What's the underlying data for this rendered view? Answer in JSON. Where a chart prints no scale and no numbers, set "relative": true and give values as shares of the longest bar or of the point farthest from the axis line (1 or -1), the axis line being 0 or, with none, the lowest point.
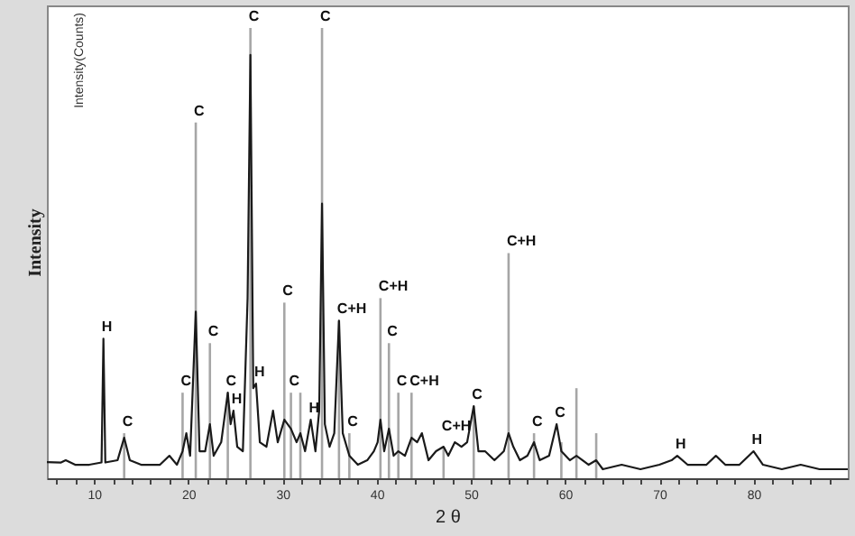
{
  "chart_data": {
    "type": "line",
    "relative": true,
    "xlabel": "2 θ",
    "ylabel": "Intensity",
    "xlim": [
      5,
      90
    ],
    "xticks": [
      {
        "value": 6,
        "label": null
      },
      {
        "value": 8,
        "label": null
      },
      10,
      {
        "value": 12,
        "label": null
      },
      {
        "value": 14,
        "label": null
      },
      {
        "value": 16,
        "label": null
      },
      {
        "value": 18,
        "label": null
      },
      20,
      {
        "value": 22,
        "label": null
      },
      {
        "value": 24,
        "label": null
      },
      {
        "value": 26,
        "label": null
      },
      {
        "value": 28,
        "label": null
      },
      30,
      {
        "value": 32,
        "label": null
      },
      {
        "value": 34,
        "label": null
      },
      {
        "value": 36,
        "label": null
      },
      {
        "value": 38,
        "label": null
      },
      40,
      {
        "value": 42,
        "label": null
      },
      {
        "value": 44,
        "label": null
      },
      {
        "value": 46,
        "label": null
      },
      {
        "value": 48,
        "label": null
      },
      50,
      {
        "value": 52,
        "label": null
      },
      {
        "value": 54,
        "label": null
      },
      {
        "value": 56,
        "label": null
      },
      {
        "value": 58,
        "label": null
      },
      60,
      {
        "value": 62,
        "label": null
      },
      {
        "value": 64,
        "label": null
      },
      {
        "value": 66,
        "label": null
      },
      {
        "value": 68,
        "label": null
      },
      70,
      {
        "value": 72,
        "label": null
      },
      {
        "value": 74,
        "label": null
      },
      {
        "value": 76,
        "label": null
      },
      {
        "value": 78,
        "label": null
      },
      80,
      {
        "value": 82,
        "label": null
      },
      {
        "value": 84,
        "label": null
      },
      {
        "value": 86,
        "label": null
      },
      {
        "value": 88,
        "label": null
      }
    ],
    "grid": false,
    "series": [
      {
        "type": "bar",
        "color": "#a6a6a6",
        "x": [
          13.2,
          19.4,
          20.8,
          22.3,
          24.2,
          26.6,
          30.2,
          30.9,
          31.9,
          34.2,
          36.0,
          37.1,
          40.4,
          41.3,
          42.3,
          43.7,
          47.1,
          50.3,
          54.0,
          56.7,
          59.6,
          61.2,
          63.3
        ],
        "values": [
          0.1,
          0.19,
          0.79,
          0.3,
          0.19,
          1.0,
          0.39,
          0.19,
          0.19,
          1.0,
          0.35,
          0.1,
          0.4,
          0.3,
          0.19,
          0.19,
          0.07,
          0.16,
          0.5,
          0.1,
          0.08,
          0.2,
          0.1
        ]
      },
      {
        "type": "line",
        "color": "#1a1a1a",
        "x": [
          5.0,
          6.5,
          7.0,
          8.0,
          9.5,
          10.8,
          11.0,
          11.2,
          12.5,
          13.2,
          13.8,
          15.0,
          17.0,
          18.0,
          18.8,
          19.4,
          19.8,
          20.2,
          20.8,
          21.2,
          21.8,
          22.3,
          22.7,
          23.5,
          24.2,
          24.5,
          24.8,
          25.2,
          25.8,
          26.3,
          26.6,
          26.9,
          27.2,
          27.6,
          28.3,
          29.0,
          29.5,
          30.2,
          30.9,
          31.5,
          31.9,
          32.4,
          33.0,
          33.5,
          33.9,
          34.2,
          34.5,
          35.0,
          35.5,
          36.0,
          36.4,
          37.1,
          38.0,
          39.0,
          39.7,
          40.1,
          40.4,
          40.8,
          41.3,
          41.8,
          42.3,
          43.0,
          43.7,
          44.3,
          44.8,
          45.5,
          46.3,
          47.1,
          47.6,
          48.3,
          49.0,
          49.6,
          50.3,
          50.8,
          51.5,
          52.5,
          53.5,
          54.0,
          54.5,
          55.2,
          56.0,
          56.7,
          57.3,
          58.3,
          59.1,
          59.6,
          60.5,
          61.2,
          62.5,
          63.3,
          64.0,
          66.0,
          68.0,
          70.0,
          71.3,
          71.9,
          73.0,
          75.0,
          76.0,
          77.0,
          78.5,
          80.0,
          81.0,
          83.0,
          85.0,
          87.0,
          90.0
        ],
        "values": [
          0.036,
          0.035,
          0.04,
          0.03,
          0.03,
          0.035,
          0.31,
          0.035,
          0.04,
          0.09,
          0.04,
          0.03,
          0.03,
          0.05,
          0.03,
          0.06,
          0.1,
          0.05,
          0.37,
          0.06,
          0.06,
          0.12,
          0.05,
          0.08,
          0.19,
          0.12,
          0.15,
          0.07,
          0.06,
          0.4,
          0.94,
          0.2,
          0.21,
          0.08,
          0.07,
          0.15,
          0.08,
          0.13,
          0.11,
          0.08,
          0.1,
          0.06,
          0.13,
          0.06,
          0.15,
          0.61,
          0.12,
          0.07,
          0.1,
          0.35,
          0.1,
          0.05,
          0.03,
          0.04,
          0.06,
          0.08,
          0.13,
          0.06,
          0.11,
          0.05,
          0.06,
          0.05,
          0.09,
          0.08,
          0.1,
          0.04,
          0.06,
          0.07,
          0.05,
          0.08,
          0.07,
          0.08,
          0.16,
          0.06,
          0.06,
          0.04,
          0.06,
          0.1,
          0.07,
          0.04,
          0.05,
          0.08,
          0.04,
          0.05,
          0.12,
          0.06,
          0.04,
          0.05,
          0.03,
          0.04,
          0.02,
          0.03,
          0.02,
          0.03,
          0.04,
          0.05,
          0.03,
          0.03,
          0.05,
          0.03,
          0.03,
          0.06,
          0.03,
          0.02,
          0.03,
          0.02,
          0.02
        ]
      }
    ],
    "annotations": [
      "Intensity(Counts)",
      {
        "text": "H",
        "x": 11.0,
        "y": 0.31
      },
      {
        "text": "C",
        "x": 13.2,
        "y": 0.1
      },
      {
        "text": "C",
        "x": 19.4,
        "y": 0.19
      },
      {
        "text": "C",
        "x": 20.8,
        "y": 0.79
      },
      {
        "text": "C",
        "x": 22.3,
        "y": 0.3
      },
      {
        "text": "C",
        "x": 24.2,
        "y": 0.19
      },
      {
        "text": "H",
        "x": 24.8,
        "y": 0.15
      },
      {
        "text": "C",
        "x": 26.6,
        "y": 1.0
      },
      {
        "text": "H",
        "x": 27.2,
        "y": 0.21
      },
      {
        "text": "C",
        "x": 30.2,
        "y": 0.39
      },
      {
        "text": "C",
        "x": 30.9,
        "y": 0.19
      },
      {
        "text": "H",
        "x": 33.0,
        "y": 0.13
      },
      {
        "text": "C",
        "x": 34.2,
        "y": 1.0
      },
      {
        "text": "C+H",
        "x": 36.0,
        "y": 0.35
      },
      {
        "text": "C",
        "x": 37.1,
        "y": 0.1
      },
      {
        "text": "C+H",
        "x": 40.4,
        "y": 0.4
      },
      {
        "text": "C",
        "x": 41.3,
        "y": 0.3
      },
      {
        "text": "C",
        "x": 42.3,
        "y": 0.19
      },
      {
        "text": "C+H",
        "x": 43.7,
        "y": 0.19
      },
      {
        "text": "C+H",
        "x": 47.1,
        "y": 0.09
      },
      {
        "text": "C",
        "x": 50.3,
        "y": 0.16
      },
      {
        "text": "C+H",
        "x": 54.0,
        "y": 0.5
      },
      {
        "text": "C",
        "x": 56.7,
        "y": 0.1
      },
      {
        "text": "C",
        "x": 59.1,
        "y": 0.12
      },
      {
        "text": "H",
        "x": 71.9,
        "y": 0.05
      },
      {
        "text": "H",
        "x": 80.0,
        "y": 0.06
      }
    ]
  }
}
